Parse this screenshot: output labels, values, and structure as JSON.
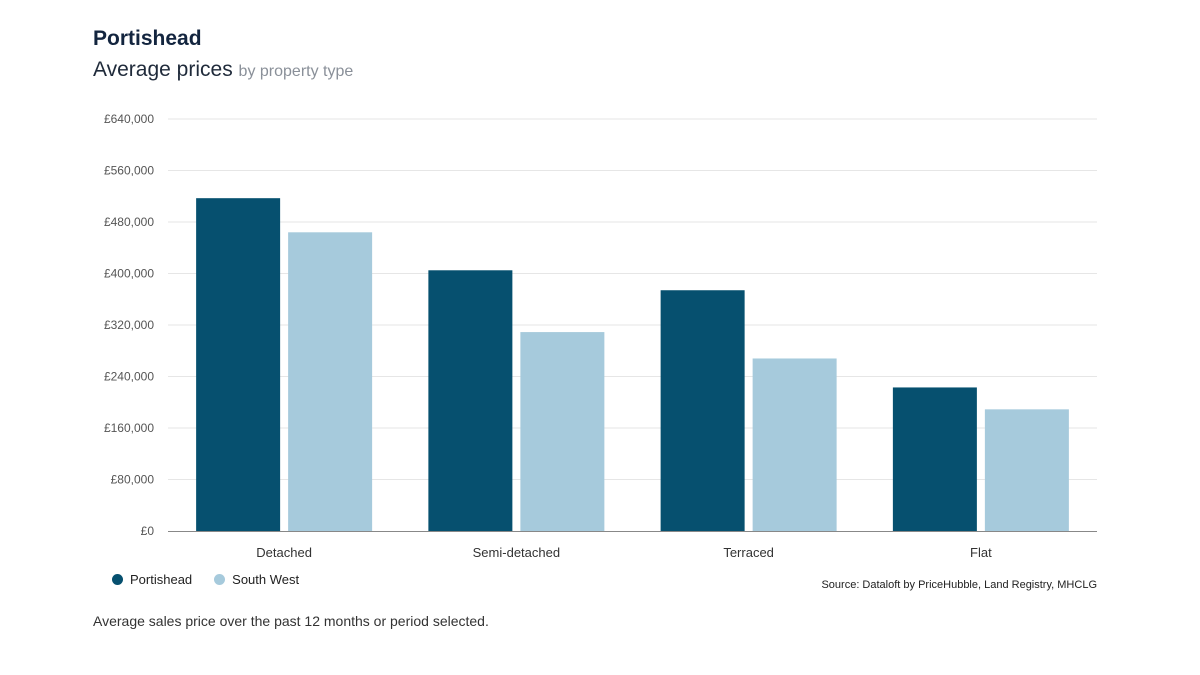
{
  "title": "Portishead",
  "subtitle": "Average prices",
  "subtitle_suffix": "by property type",
  "source": "Source: Dataloft by PriceHubble, Land Registry, MHCLG",
  "note": "Average sales price over the past 12 months or period selected.",
  "colors": {
    "Portishead": "#06506f",
    "South West": "#a6cadc"
  },
  "chart_data": {
    "type": "bar",
    "categories": [
      "Detached",
      "Semi-detached",
      "Terraced",
      "Flat"
    ],
    "series": [
      {
        "name": "Portishead",
        "values": [
          517000,
          405000,
          374000,
          223000
        ]
      },
      {
        "name": "South West",
        "values": [
          464000,
          309000,
          268000,
          189000
        ]
      }
    ],
    "ylim": [
      0,
      640000
    ],
    "yticks": [
      0,
      80000,
      160000,
      240000,
      320000,
      400000,
      480000,
      560000,
      640000
    ],
    "ytick_labels": [
      "£0",
      "£80,000",
      "£160,000",
      "£240,000",
      "£320,000",
      "£400,000",
      "£480,000",
      "£560,000",
      "£640,000"
    ],
    "grid": true,
    "legend": "bottom-left"
  }
}
